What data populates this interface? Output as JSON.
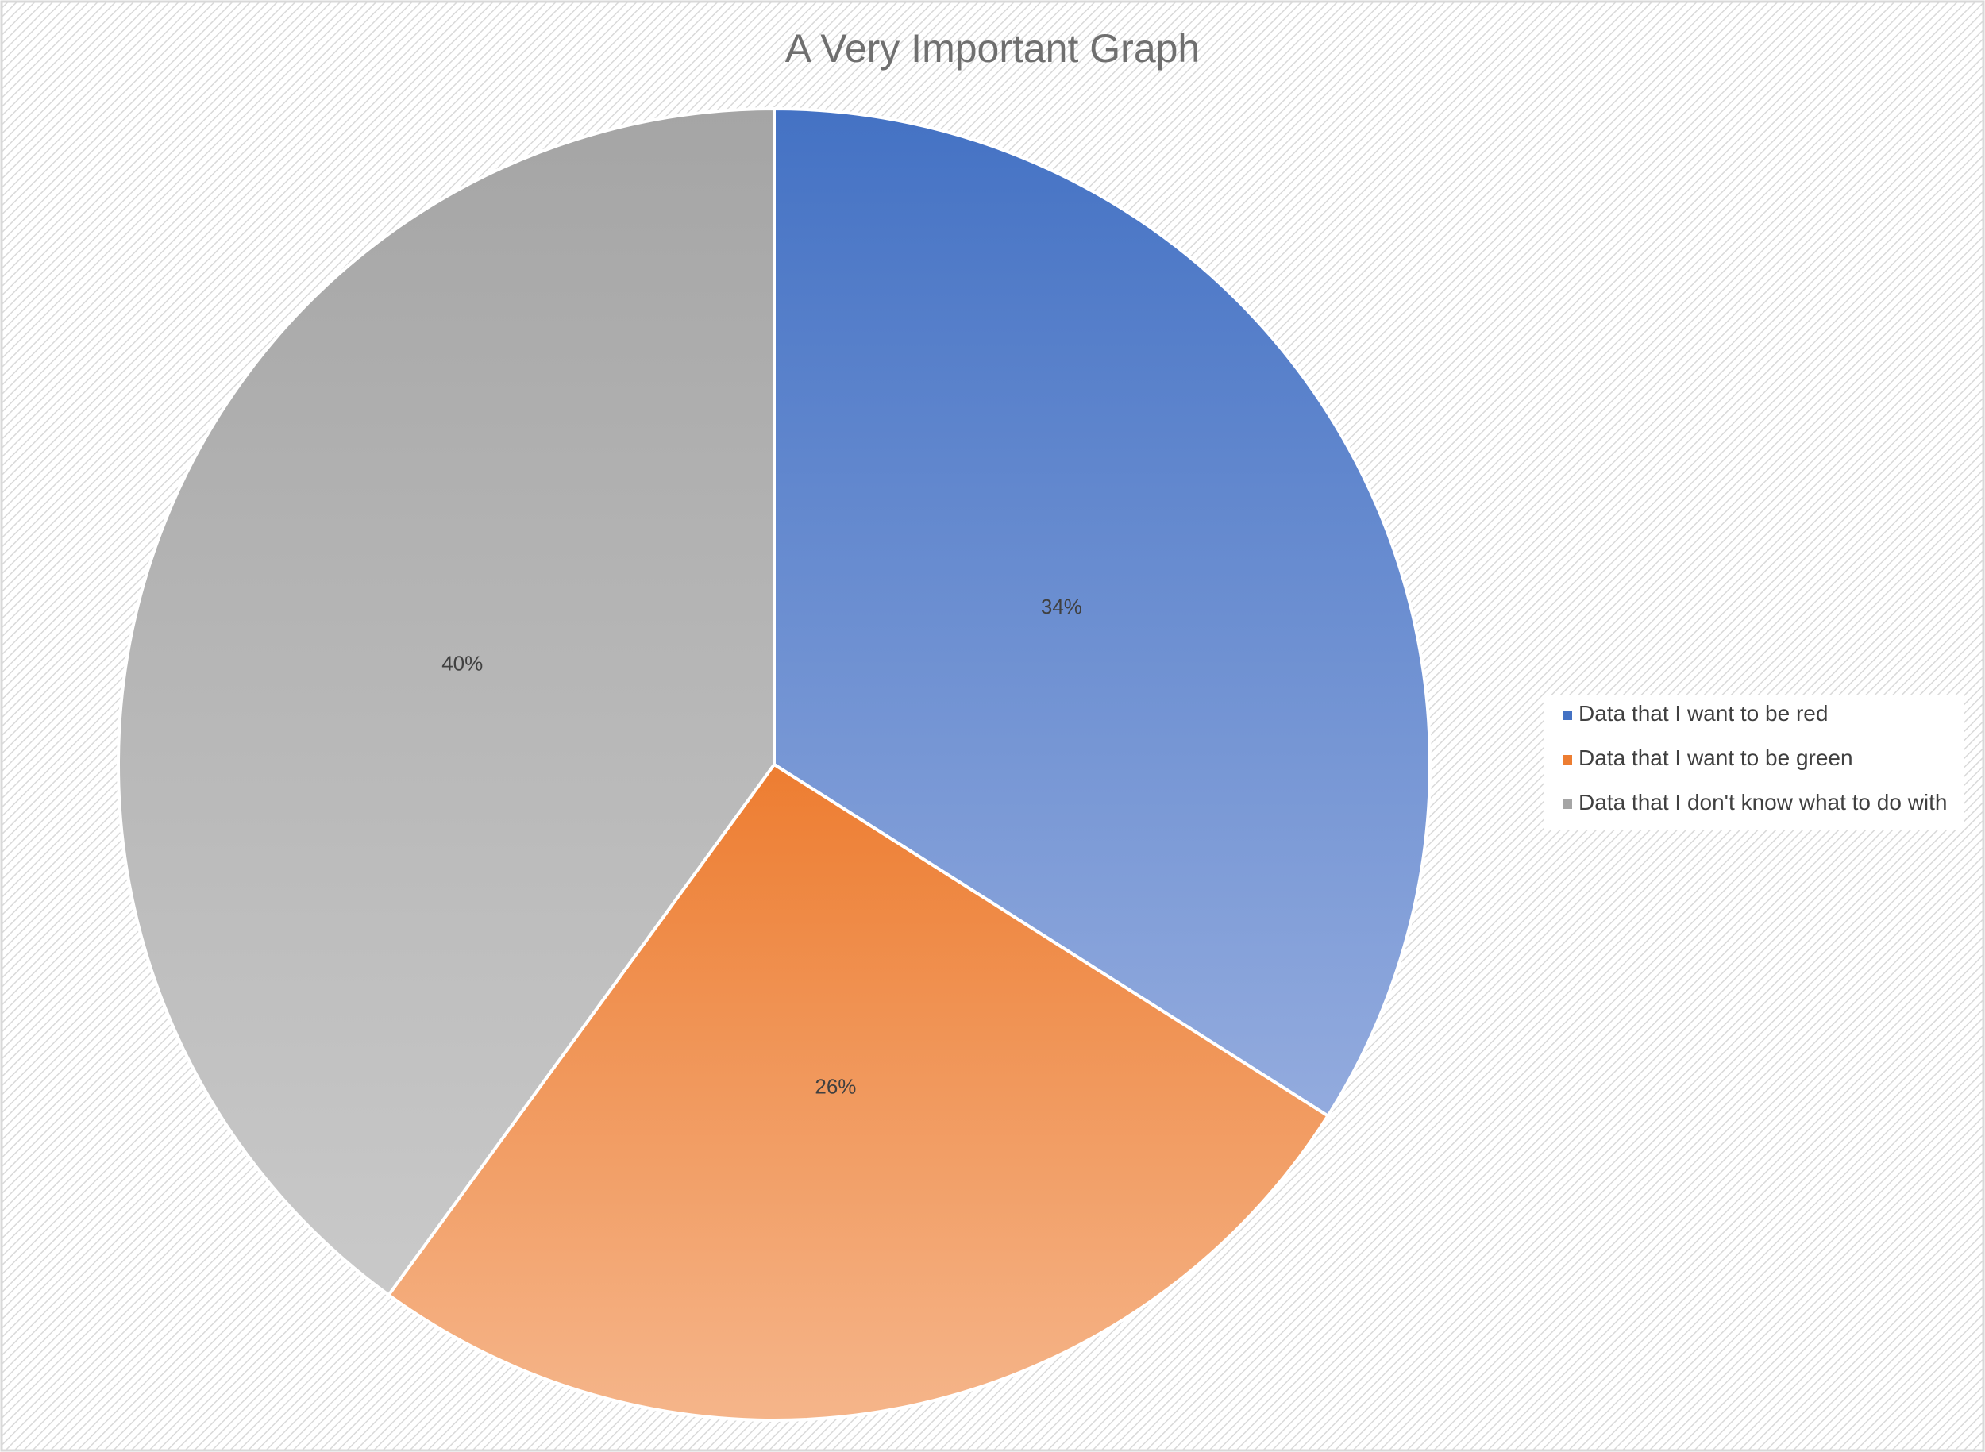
{
  "chart_data": {
    "type": "pie",
    "title": "A Very Important Graph",
    "categories": [
      "Data that I want to be red",
      "Data that I want to be green",
      "Data that I don't know what to do with"
    ],
    "values": [
      34,
      26,
      40
    ],
    "labels": [
      "34%",
      "26%",
      "40%"
    ],
    "colors": {
      "top": [
        "#4472c4",
        "#ed7d31",
        "#a5a5a5"
      ],
      "bottom": [
        "#93abde",
        "#f5b58a",
        "#c9c9c9"
      ]
    },
    "legend_position": "right",
    "grid": false
  }
}
